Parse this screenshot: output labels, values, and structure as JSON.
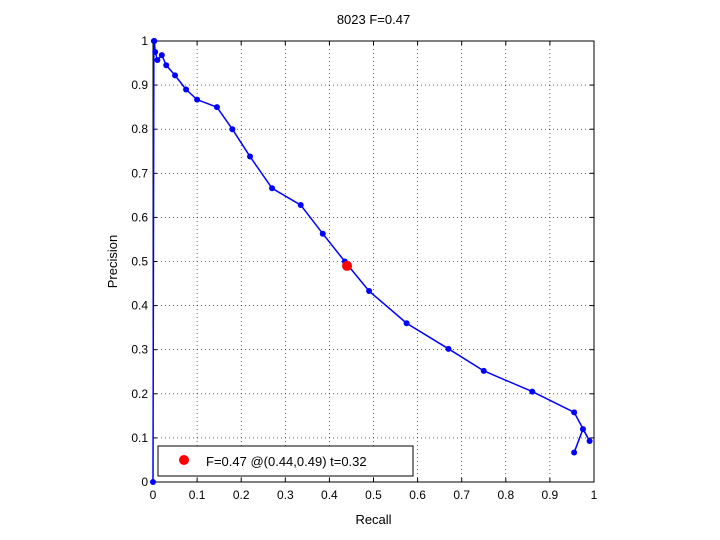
{
  "chart_data": {
    "type": "line",
    "title": "8023 F=0.47",
    "xlabel": "Recall",
    "ylabel": "Precision",
    "xlim": [
      0,
      1
    ],
    "ylim": [
      0,
      1
    ],
    "grid": true,
    "xticks": [
      "0",
      "0.1",
      "0.2",
      "0.3",
      "0.4",
      "0.5",
      "0.6",
      "0.7",
      "0.8",
      "0.9",
      "1"
    ],
    "yticks": [
      "0",
      "0.1",
      "0.2",
      "0.3",
      "0.4",
      "0.5",
      "0.6",
      "0.7",
      "0.8",
      "0.9",
      "1"
    ],
    "series": [
      {
        "color": "#0000ff",
        "x": [
          0.955,
          0.975,
          0.99,
          0.955,
          0.86,
          0.75,
          0.67,
          0.575,
          0.49,
          0.435,
          0.385,
          0.335,
          0.27,
          0.22,
          0.18,
          0.145,
          0.1,
          0.075,
          0.05,
          0.03,
          0.02,
          0.01,
          0.005,
          0.003,
          0.002,
          0.0
        ],
        "y": [
          0.067,
          0.12,
          0.093,
          0.158,
          0.205,
          0.252,
          0.302,
          0.36,
          0.433,
          0.5,
          0.563,
          0.628,
          0.666,
          0.738,
          0.8,
          0.85,
          0.867,
          0.89,
          0.922,
          0.945,
          0.968,
          0.957,
          0.975,
          1.0,
          1.0,
          0.0
        ]
      }
    ],
    "best_point": {
      "x": 0.44,
      "y": 0.49,
      "color": "#ff0000"
    },
    "legend": {
      "position": "bottom-left",
      "text": "F=0.47 @(0.44,0.49) t=0.32"
    }
  }
}
